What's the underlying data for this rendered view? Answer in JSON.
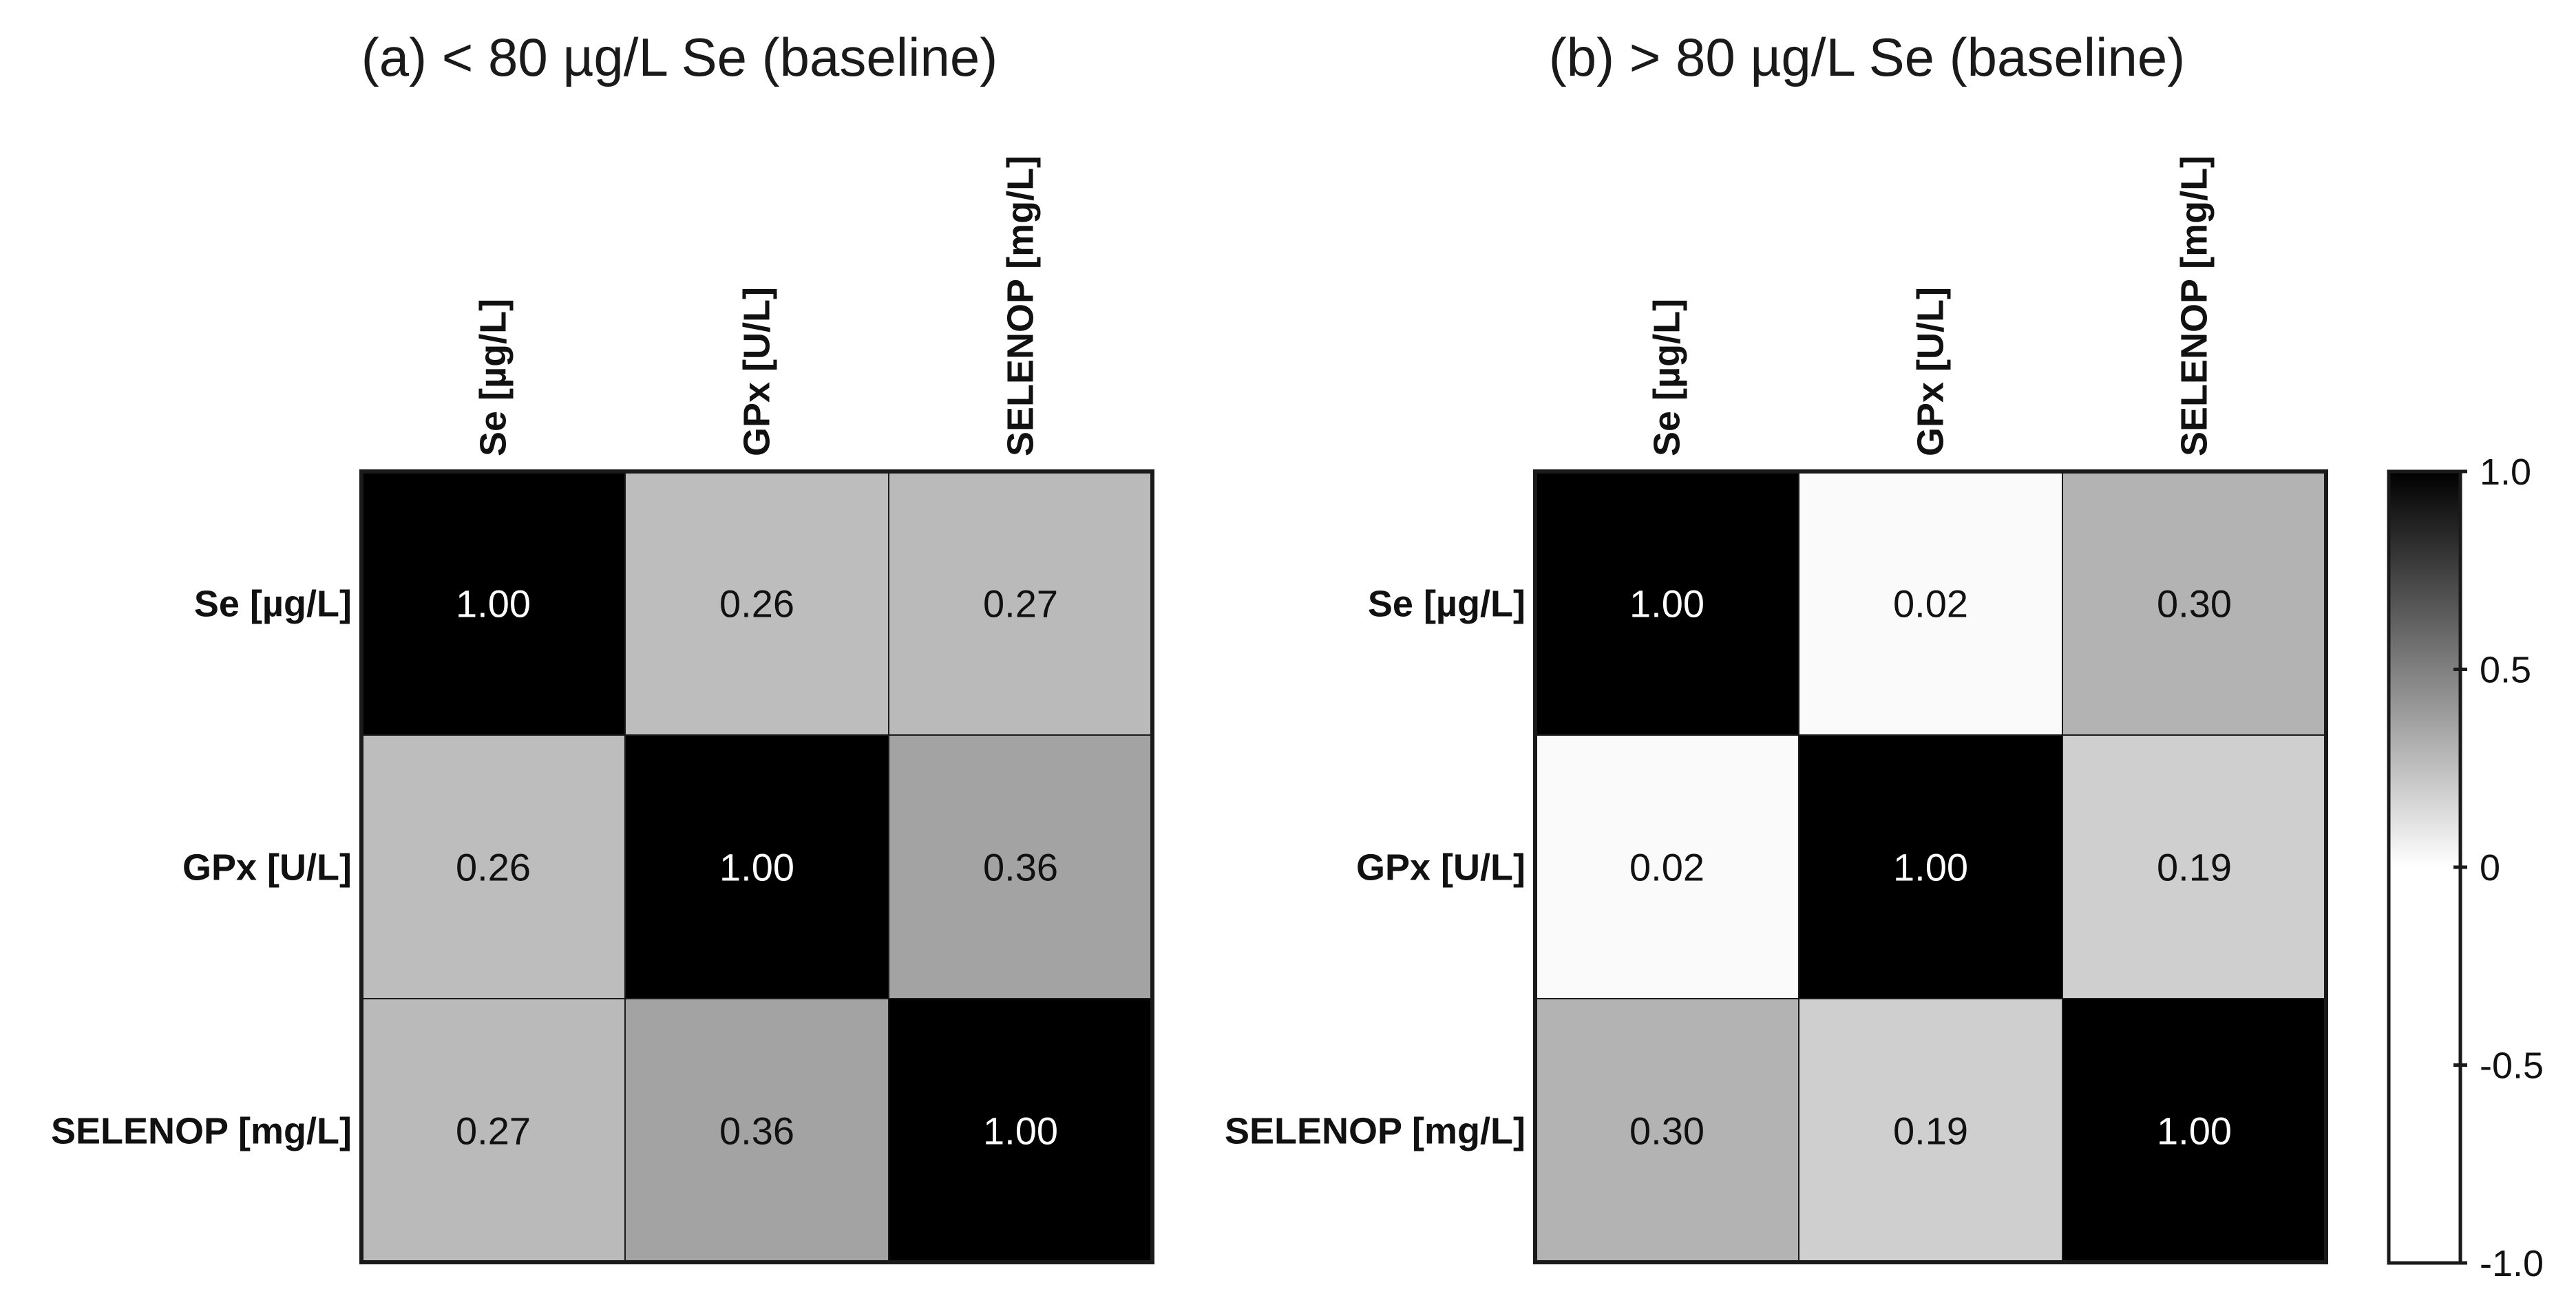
{
  "chart_data": [
    {
      "type": "heatmap",
      "title": "(a) < 80 µg/L Se (baseline)",
      "rows": [
        "Se [µg/L]",
        "GPx [U/L]",
        "SELENOP [mg/L]"
      ],
      "columns": [
        "Se [µg/L]",
        "GPx [U/L]",
        "SELENOP [mg/L]"
      ],
      "values": [
        [
          1.0,
          0.26,
          0.27
        ],
        [
          0.26,
          1.0,
          0.36
        ],
        [
          0.27,
          0.36,
          1.0
        ]
      ],
      "value_labels": [
        [
          "1.00",
          "0.26",
          "0.27"
        ],
        [
          "0.26",
          "1.00",
          "0.36"
        ],
        [
          "0.27",
          "0.36",
          "1.00"
        ]
      ]
    },
    {
      "type": "heatmap",
      "title": "(b) > 80 µg/L Se (baseline)",
      "rows": [
        "Se [µg/L]",
        "GPx [U/L]",
        "SELENOP [mg/L]"
      ],
      "columns": [
        "Se [µg/L]",
        "GPx [U/L]",
        "SELENOP [mg/L]"
      ],
      "values": [
        [
          1.0,
          0.02,
          0.3
        ],
        [
          0.02,
          1.0,
          0.19
        ],
        [
          0.3,
          0.19,
          1.0
        ]
      ],
      "value_labels": [
        [
          "1.00",
          "0.02",
          "0.30"
        ],
        [
          "0.02",
          "1.00",
          "0.19"
        ],
        [
          "0.30",
          "0.19",
          "1.00"
        ]
      ]
    }
  ],
  "colorbar": {
    "range": [
      -1.0,
      1.0
    ],
    "ticks": [
      1.0,
      0.5,
      0,
      -0.5,
      -1.0
    ],
    "tick_labels": [
      "1.0",
      "0.5",
      "0",
      "-0.5",
      "-1.0"
    ],
    "color_at_min": "#ffffff",
    "color_at_zero": "#ffffff",
    "color_at_max": "#000000"
  },
  "colors": {
    "grid_border": "#1a1a1a",
    "text_dark": "#111111",
    "text_light": "#ffffff"
  }
}
